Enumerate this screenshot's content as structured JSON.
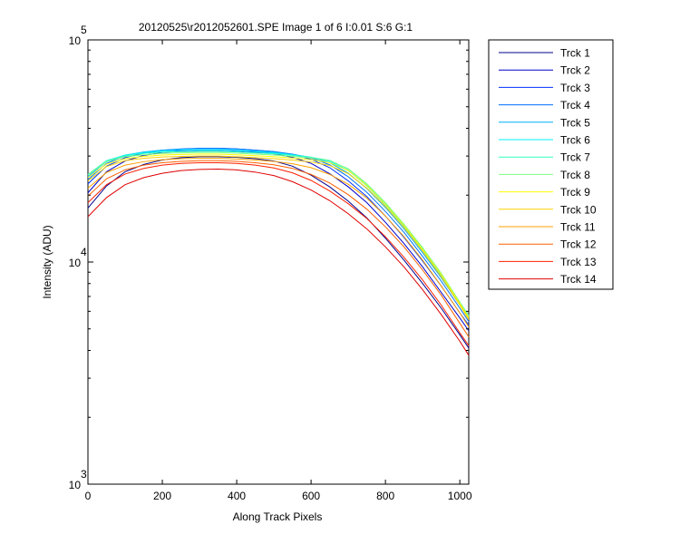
{
  "chart_data": {
    "type": "line",
    "title": "20120525\\r2012052601.SPE  Image 1 of 6  I:0.01  S:6  G:1",
    "xlabel": "Along Track Pixels",
    "ylabel": "Intensity (ADU)",
    "xlim": [
      0,
      1024
    ],
    "ylim": [
      1000,
      100000
    ],
    "yscale": "log",
    "x_ticks": [
      "0",
      "200",
      "400",
      "600",
      "800",
      "1000"
    ],
    "y_ticks": [
      {
        "base": "10",
        "exp": "3"
      },
      {
        "base": "10",
        "exp": "4"
      },
      {
        "base": "10",
        "exp": "5"
      }
    ],
    "grid": false,
    "legend_position": "outside-right",
    "x": [
      0,
      50,
      100,
      150,
      200,
      250,
      300,
      350,
      400,
      450,
      500,
      550,
      600,
      650,
      700,
      750,
      800,
      850,
      900,
      950,
      1000,
      1024
    ],
    "series": [
      {
        "name": "Trck 1",
        "color": "#00008f",
        "values": [
          17500,
          22000,
          25500,
          27500,
          28800,
          29500,
          29800,
          29800,
          29600,
          29200,
          28500,
          27000,
          24600,
          21800,
          18800,
          15800,
          12800,
          10200,
          8000,
          6200,
          4700,
          4100
        ]
      },
      {
        "name": "Trck 2",
        "color": "#0000cc",
        "values": [
          20500,
          25500,
          28500,
          30200,
          31100,
          31600,
          31800,
          31800,
          31600,
          31200,
          30700,
          29600,
          27800,
          25000,
          21800,
          18500,
          15100,
          12100,
          9500,
          7300,
          5600,
          4900
        ]
      },
      {
        "name": "Trck 3",
        "color": "#0030ff",
        "values": [
          22500,
          27000,
          29500,
          30900,
          31700,
          32200,
          32500,
          32500,
          32300,
          31900,
          31400,
          30500,
          29000,
          26600,
          23200,
          19700,
          16100,
          12900,
          10100,
          7800,
          5900,
          5200
        ]
      },
      {
        "name": "Trck 4",
        "color": "#0070ff",
        "values": [
          23500,
          27800,
          30000,
          31200,
          31900,
          32300,
          32500,
          32500,
          32300,
          31900,
          31400,
          30600,
          29400,
          27400,
          24200,
          20600,
          16900,
          13600,
          10600,
          8200,
          6200,
          5400
        ]
      },
      {
        "name": "Trck 5",
        "color": "#00b0ff",
        "values": [
          24200,
          28400,
          30300,
          31300,
          31900,
          32200,
          32300,
          32300,
          32100,
          31700,
          31200,
          30500,
          29600,
          28000,
          25100,
          21400,
          17600,
          14100,
          11000,
          8500,
          6400,
          5600
        ]
      },
      {
        "name": "Trck 6",
        "color": "#00f0ff",
        "values": [
          24600,
          28600,
          30300,
          31100,
          31600,
          31800,
          31900,
          31900,
          31700,
          31400,
          31000,
          30400,
          29600,
          28400,
          25800,
          22000,
          18100,
          14500,
          11300,
          8700,
          6500,
          5700
        ]
      },
      {
        "name": "Trck 7",
        "color": "#30ffc0",
        "values": [
          24800,
          28600,
          30100,
          30800,
          31200,
          31400,
          31500,
          31500,
          31300,
          31000,
          30700,
          30200,
          29600,
          28700,
          26200,
          22400,
          18400,
          14700,
          11500,
          8800,
          6600,
          5750
        ]
      },
      {
        "name": "Trck 8",
        "color": "#80ff80",
        "values": [
          24700,
          28300,
          29800,
          30400,
          30800,
          31000,
          31100,
          31100,
          30900,
          30600,
          30300,
          29900,
          29400,
          28600,
          26300,
          22500,
          18500,
          14800,
          11600,
          8900,
          6600,
          5700
        ]
      },
      {
        "name": "Trck 9",
        "color": "#ffff00",
        "values": [
          24000,
          27600,
          29200,
          29900,
          30300,
          30500,
          30600,
          30600,
          30400,
          30100,
          29800,
          29400,
          28900,
          28000,
          25800,
          22100,
          18200,
          14600,
          11400,
          8800,
          6500,
          5600
        ]
      },
      {
        "name": "Trck 10",
        "color": "#ffd000",
        "values": [
          23200,
          26900,
          28600,
          29300,
          29700,
          29900,
          30000,
          30000,
          29800,
          29500,
          29200,
          28800,
          28200,
          27200,
          25000,
          21500,
          17800,
          14300,
          11200,
          8600,
          6400,
          5500
        ]
      },
      {
        "name": "Trck 11",
        "color": "#ffa000",
        "values": [
          21500,
          25300,
          27300,
          28300,
          28900,
          29200,
          29300,
          29300,
          29100,
          28800,
          28400,
          27700,
          26600,
          24800,
          22400,
          19400,
          16100,
          13000,
          10200,
          7800,
          5900,
          5100
        ]
      },
      {
        "name": "Trck 12",
        "color": "#ff6000",
        "values": [
          19800,
          23700,
          26000,
          27300,
          28000,
          28400,
          28600,
          28600,
          28400,
          28000,
          27400,
          26400,
          24800,
          22700,
          20100,
          17300,
          14400,
          11700,
          9200,
          7100,
          5300,
          4600
        ]
      },
      {
        "name": "Trck 13",
        "color": "#ff2000",
        "values": [
          18500,
          22300,
          24900,
          26400,
          27300,
          27800,
          28000,
          28000,
          27800,
          27300,
          26500,
          25200,
          23300,
          20900,
          18300,
          15700,
          13000,
          10500,
          8300,
          6400,
          4800,
          4200
        ]
      },
      {
        "name": "Trck 14",
        "color": "#e00000",
        "values": [
          16000,
          19500,
          22300,
          24000,
          25100,
          25800,
          26100,
          26200,
          26000,
          25400,
          24500,
          23000,
          21100,
          18900,
          16500,
          14100,
          11700,
          9500,
          7500,
          5800,
          4400,
          3800
        ]
      }
    ]
  }
}
